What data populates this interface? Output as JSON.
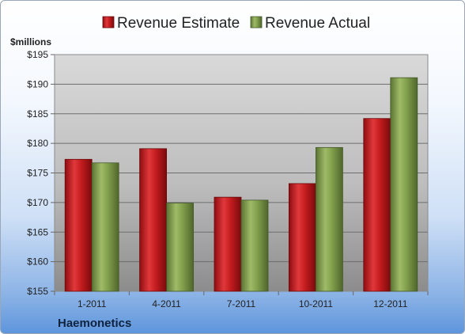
{
  "chart_data": {
    "type": "bar",
    "categories": [
      "1-2011",
      "4-2011",
      "7-2011",
      "10-2011",
      "12-2011"
    ],
    "series": [
      {
        "name": "Revenue Estimate",
        "color": "#c0191c",
        "values": [
          177.3,
          179.1,
          170.9,
          173.2,
          184.2
        ]
      },
      {
        "name": "Revenue Actual",
        "color": "#7f9c4a",
        "values": [
          176.7,
          169.9,
          170.4,
          179.3,
          191.1
        ]
      }
    ],
    "ylabel": "$millions",
    "ylim": [
      155,
      195
    ],
    "yticks": [
      155,
      160,
      165,
      170,
      175,
      180,
      185,
      190,
      195
    ],
    "ytick_labels": [
      "$155",
      "$160",
      "$165",
      "$170",
      "$175",
      "$180",
      "$185",
      "$190",
      "$195"
    ],
    "grid": true,
    "legend_position": "top"
  },
  "company": "Haemonetics"
}
